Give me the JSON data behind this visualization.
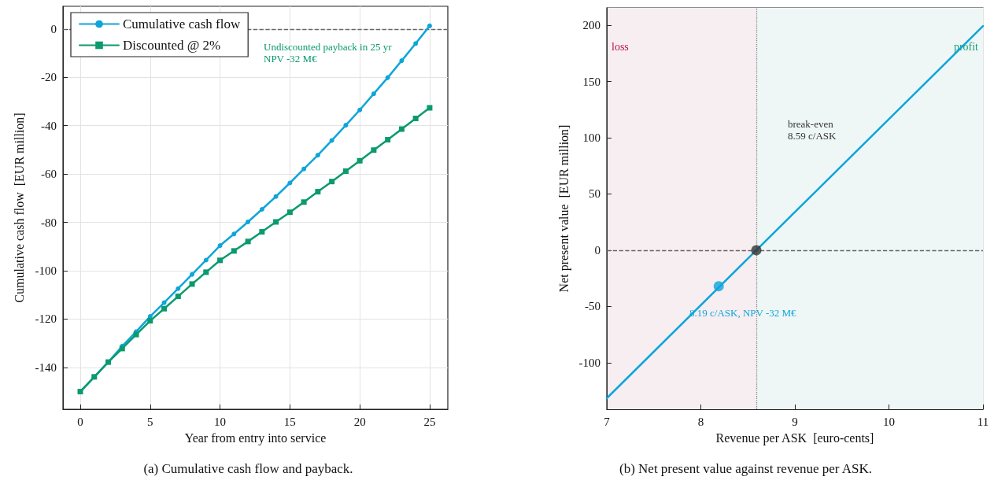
{
  "chart_data": [
    {
      "type": "line",
      "title": "(a) Cumulative cash flow and payback.",
      "xlabel": "Year from entry into service",
      "ylabel": "Cumulative cash flow  [EUR million]",
      "x": [
        0,
        1,
        2,
        3,
        4,
        5,
        6,
        7,
        8,
        9,
        10,
        11,
        12,
        13,
        14,
        15,
        16,
        17,
        18,
        19,
        20,
        21,
        22,
        23,
        24,
        25
      ],
      "series": [
        {
          "name": "Cumulative cash flow",
          "color": "#0ea5d9",
          "marker": "circle",
          "values": [
            -150,
            -144,
            -137.8,
            -131.2,
            -125.2,
            -118.9,
            -113.2,
            -107.4,
            -101.5,
            -95.6,
            -89.6,
            -84.8,
            -79.8,
            -74.6,
            -69.3,
            -63.7,
            -57.9,
            -52.2,
            -46.1,
            -39.8,
            -33.5,
            -26.8,
            -20.1,
            -13.1,
            -6,
            1.3
          ]
        },
        {
          "name": "Discounted @ 2%",
          "color": "#0a9a6e",
          "marker": "square",
          "values": [
            -150,
            -143.9,
            -137.8,
            -132.2,
            -126.4,
            -120.7,
            -115.7,
            -110.6,
            -105.5,
            -100.6,
            -95.7,
            -91.8,
            -87.9,
            -83.9,
            -79.8,
            -75.8,
            -71.6,
            -67.3,
            -63.1,
            -58.8,
            -54.5,
            -50.1,
            -45.8,
            -41.4,
            -37,
            -32.6
          ]
        }
      ],
      "xlim": [
        -1.24,
        26.3
      ],
      "xticks": [
        0,
        5,
        10,
        15,
        20,
        25
      ],
      "ylim": [
        -157.3,
        9.4
      ],
      "yticks": [
        -140,
        -120,
        -100,
        -80,
        -60,
        -40,
        -20,
        0
      ],
      "ref_lines": [
        {
          "axis": "y",
          "value": 0,
          "color": "#666666",
          "line_style": "dashed"
        }
      ],
      "annotations": [
        "Undiscounted payback in 25 yr\nNPV -32 M€"
      ],
      "grid": true,
      "legend": "top left",
      "line_style": "solid"
    },
    {
      "type": "line",
      "title": "(b) Net present value against revenue per ASK.",
      "xlabel": "Revenue per ASK  [euro-cents]",
      "ylabel": "Net present value  [EUR million]",
      "series": [
        {
          "color": "#0ea5d9",
          "marker": "none",
          "x": [
            7,
            11
          ],
          "values": [
            -131.5,
            199.3
          ]
        },
        {
          "type": "scatter",
          "color": "#333333",
          "marker": "circle",
          "x": [
            8.59
          ],
          "values": [
            0
          ]
        },
        {
          "type": "scatter",
          "color": "#0ea5d9",
          "marker": "circle",
          "x": [
            8.19
          ],
          "values": [
            -32
          ]
        }
      ],
      "xlim": [
        7,
        11
      ],
      "xticks": [
        7,
        8,
        9,
        10,
        11
      ],
      "ylim": [
        -141.3,
        215.4
      ],
      "yticks": [
        -100,
        -50,
        0,
        50,
        100,
        150,
        200
      ],
      "bands": [
        {
          "axis": "x",
          "from": 7,
          "to": 8.59,
          "label": "loss",
          "color": "#f7eef2"
        },
        {
          "axis": "x",
          "from": 8.59,
          "to": 11,
          "label": "profit",
          "color": "#eef7f5"
        }
      ],
      "ref_lines": [
        {
          "axis": "x",
          "value": 8.59,
          "color": "#888888",
          "line_style": "dotted"
        },
        {
          "axis": "y",
          "value": 0,
          "color": "#666666",
          "line_style": "dashed"
        }
      ],
      "annotations": [
        "break-even\n8.59 c/ASK",
        "8.19 c/ASK, NPV -32 M€"
      ],
      "grid": true,
      "legend": false,
      "line_style": "solid"
    }
  ]
}
